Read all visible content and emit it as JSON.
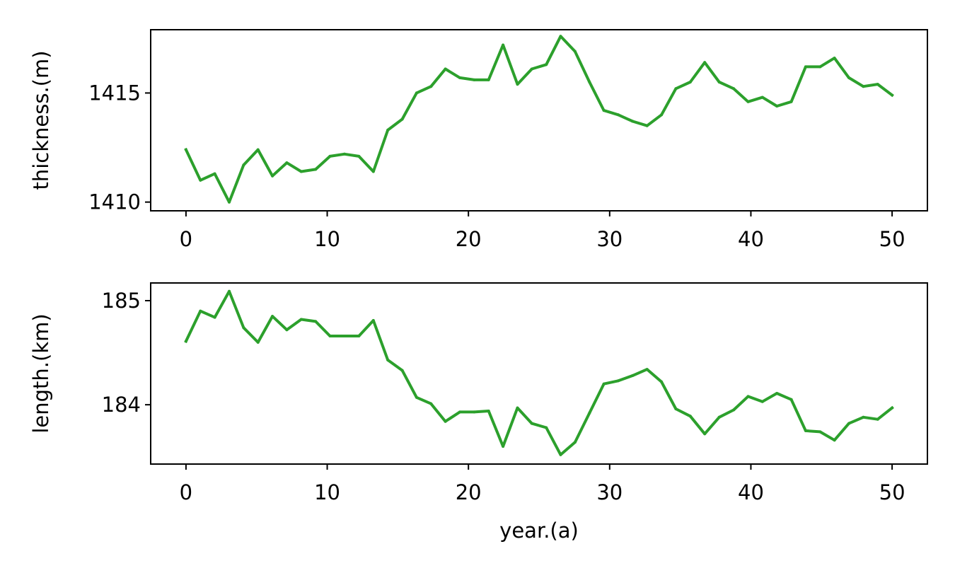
{
  "figure": {
    "line_color": "#2ca02c",
    "shared_xlabel": "year.(a)"
  },
  "chart_data": [
    {
      "type": "line",
      "title": "",
      "xlabel": "",
      "ylabel": "thickness.(m)",
      "xlim": [
        -2.5,
        52.5
      ],
      "ylim": [
        1409.6,
        1417.9
      ],
      "xticks": [
        0,
        10,
        20,
        30,
        40,
        50
      ],
      "yticks": [
        1410,
        1415
      ],
      "grid": false,
      "series": [
        {
          "x": [
            0,
            1.02,
            2.04,
            3.06,
            4.08,
            5.1,
            6.12,
            7.14,
            8.16,
            9.18,
            10.2,
            11.22,
            12.24,
            13.27,
            14.29,
            15.31,
            16.33,
            17.35,
            18.37,
            19.39,
            20.41,
            21.43,
            22.45,
            23.47,
            24.49,
            25.51,
            26.53,
            27.55,
            28.57,
            29.59,
            30.61,
            31.63,
            32.65,
            33.67,
            34.69,
            35.71,
            36.73,
            37.76,
            38.78,
            39.8,
            40.82,
            41.84,
            42.86,
            43.88,
            44.9,
            45.92,
            46.94,
            47.96,
            48.98,
            50
          ],
          "y": [
            1412.4,
            1411.0,
            1411.3,
            1410.0,
            1411.7,
            1412.4,
            1411.2,
            1411.8,
            1411.4,
            1411.5,
            1412.1,
            1412.2,
            1412.1,
            1411.4,
            1413.3,
            1413.8,
            1415.0,
            1415.3,
            1416.1,
            1415.7,
            1415.6,
            1415.6,
            1417.2,
            1415.4,
            1416.1,
            1416.3,
            1417.6,
            1416.9,
            1415.5,
            1414.2,
            1414.0,
            1413.7,
            1413.5,
            1414.0,
            1415.2,
            1415.5,
            1416.4,
            1415.5,
            1415.2,
            1414.6,
            1414.8,
            1414.4,
            1414.6,
            1416.2,
            1416.2,
            1416.6,
            1415.7,
            1415.3,
            1415.4,
            1414.9
          ]
        }
      ]
    },
    {
      "type": "line",
      "title": "",
      "xlabel": "year.(a)",
      "ylabel": "length.(km)",
      "xlim": [
        -2.5,
        52.5
      ],
      "ylim": [
        183.43,
        185.17
      ],
      "xticks": [
        0,
        10,
        20,
        30,
        40,
        50
      ],
      "yticks": [
        184,
        185
      ],
      "grid": false,
      "series": [
        {
          "x": [
            0,
            1.02,
            2.04,
            3.06,
            4.08,
            5.1,
            6.12,
            7.14,
            8.16,
            9.18,
            10.2,
            11.22,
            12.24,
            13.27,
            14.29,
            15.31,
            16.33,
            17.35,
            18.37,
            19.39,
            20.41,
            21.43,
            22.45,
            23.47,
            24.49,
            25.51,
            26.53,
            27.55,
            28.57,
            29.59,
            30.61,
            31.63,
            32.65,
            33.67,
            34.69,
            35.71,
            36.73,
            37.76,
            38.78,
            39.8,
            40.82,
            41.84,
            42.86,
            43.88,
            44.9,
            45.92,
            46.94,
            47.96,
            48.98,
            50
          ],
          "y": [
            184.61,
            184.9,
            184.84,
            185.09,
            184.74,
            184.6,
            184.85,
            184.72,
            184.82,
            184.8,
            184.66,
            184.66,
            184.66,
            184.81,
            184.43,
            184.33,
            184.07,
            184.01,
            183.84,
            183.93,
            183.93,
            183.94,
            183.6,
            183.97,
            183.82,
            183.78,
            183.52,
            183.64,
            183.92,
            184.2,
            184.23,
            184.28,
            184.34,
            184.22,
            183.96,
            183.89,
            183.72,
            183.88,
            183.95,
            184.08,
            184.03,
            184.11,
            184.05,
            183.75,
            183.74,
            183.66,
            183.82,
            183.88,
            183.86,
            183.97
          ]
        }
      ]
    }
  ]
}
